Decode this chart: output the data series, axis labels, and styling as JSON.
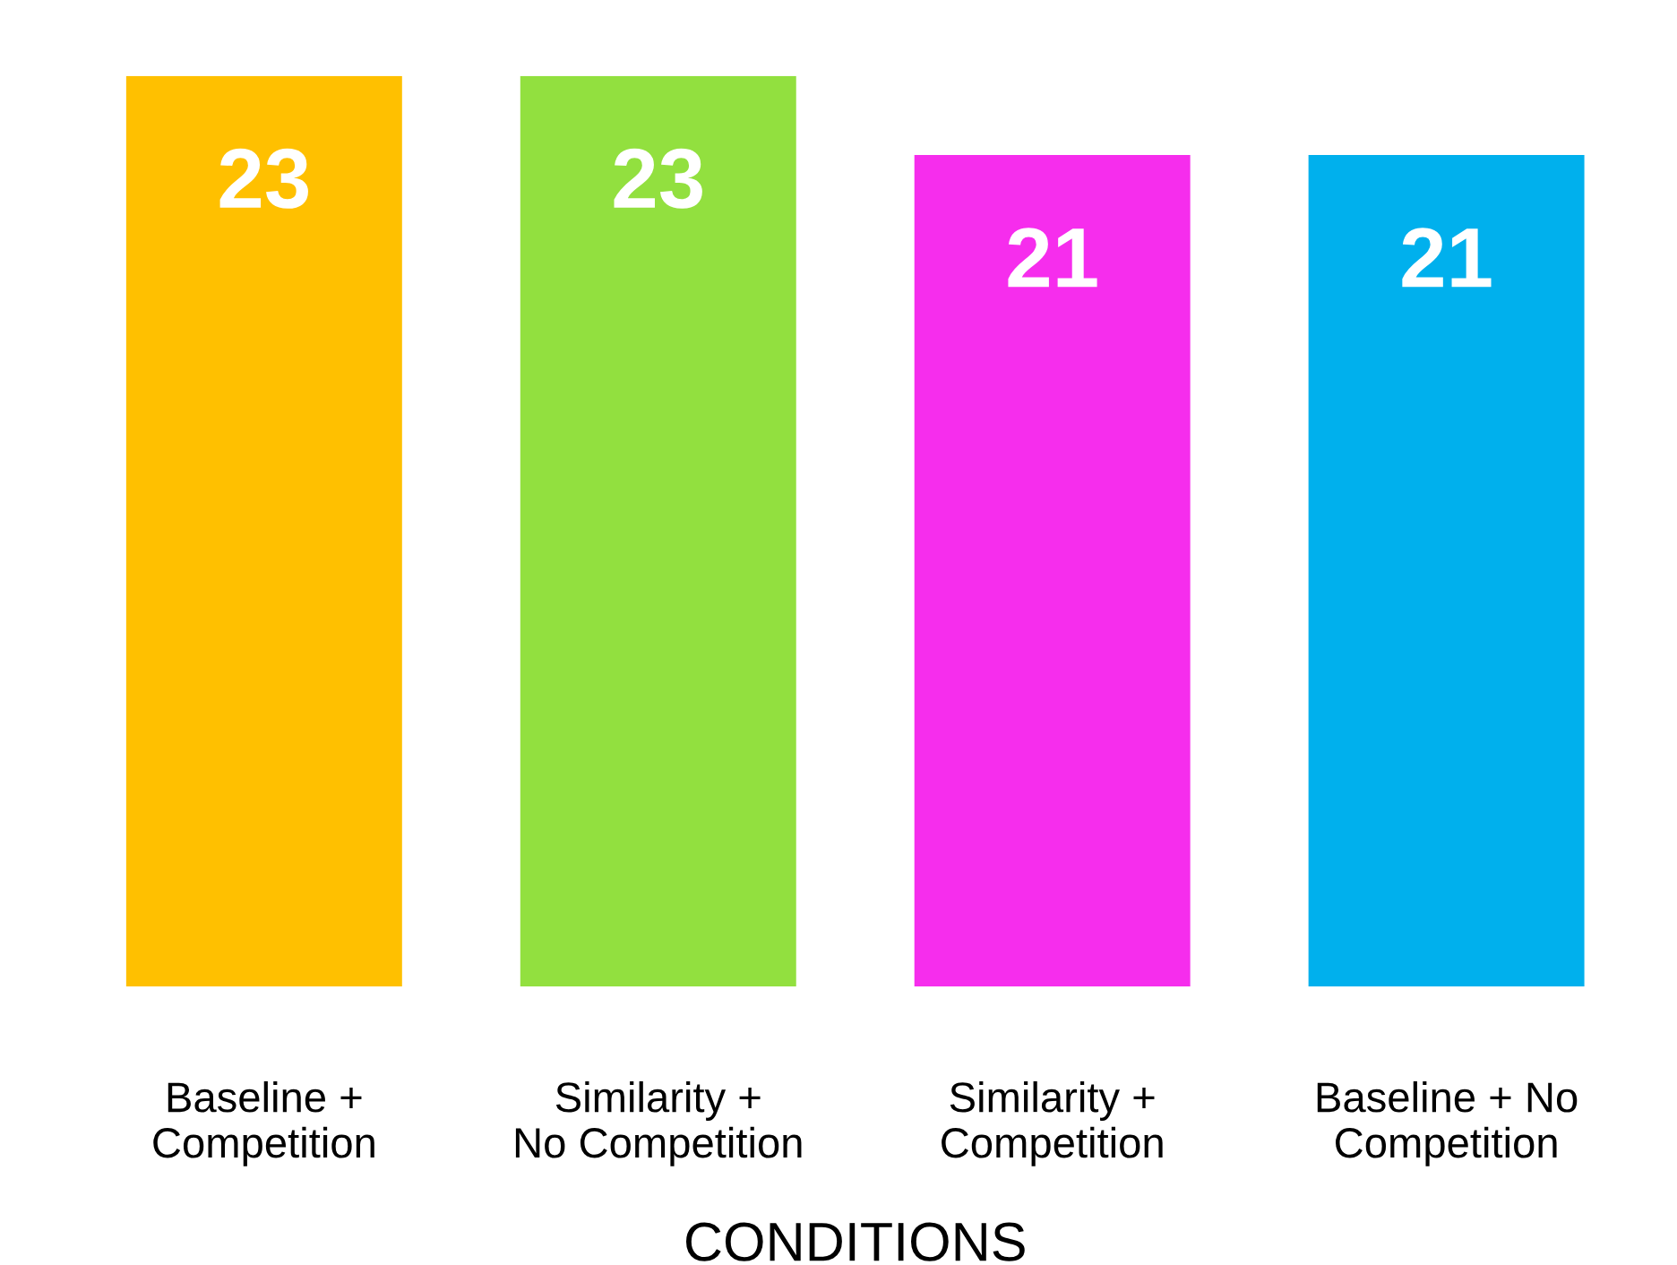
{
  "chart_data": {
    "type": "bar",
    "xlabel": "CONDITIONS",
    "categories": [
      "Baseline +\nCompetition",
      "Similarity +\nNo Competition",
      "Similarity +\nCompetition",
      "Baseline + No\nCompetition"
    ],
    "values": [
      23,
      23,
      21,
      21
    ],
    "colors": [
      "#ffc000",
      "#92e03f",
      "#f62ded",
      "#00b0ed"
    ],
    "data_labels": true,
    "grid": false,
    "legend": false
  }
}
